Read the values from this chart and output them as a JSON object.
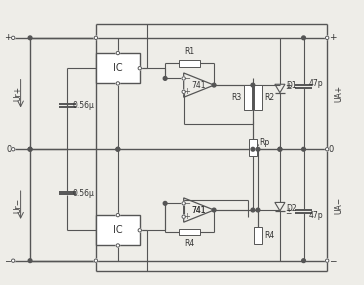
{
  "bg_color": "#eeede8",
  "line_color": "#555555",
  "line_width": 1.0,
  "thin_line": 0.8,
  "fig_width": 3.64,
  "fig_height": 2.85,
  "labels": {
    "IC": "IC",
    "R1": "R1",
    "R2": "R2",
    "R3": "R3",
    "R4": "R4",
    "Rp": "Rp",
    "D1": "D1",
    "D2": "D2",
    "C1": "0.56μ",
    "C2": "0.56μ",
    "C3": "47p",
    "C4": "47p",
    "opamp1": "741",
    "opamp2": "741"
  },
  "colors": {
    "box": "#555555",
    "text": "#333333",
    "node": "#444444"
  }
}
